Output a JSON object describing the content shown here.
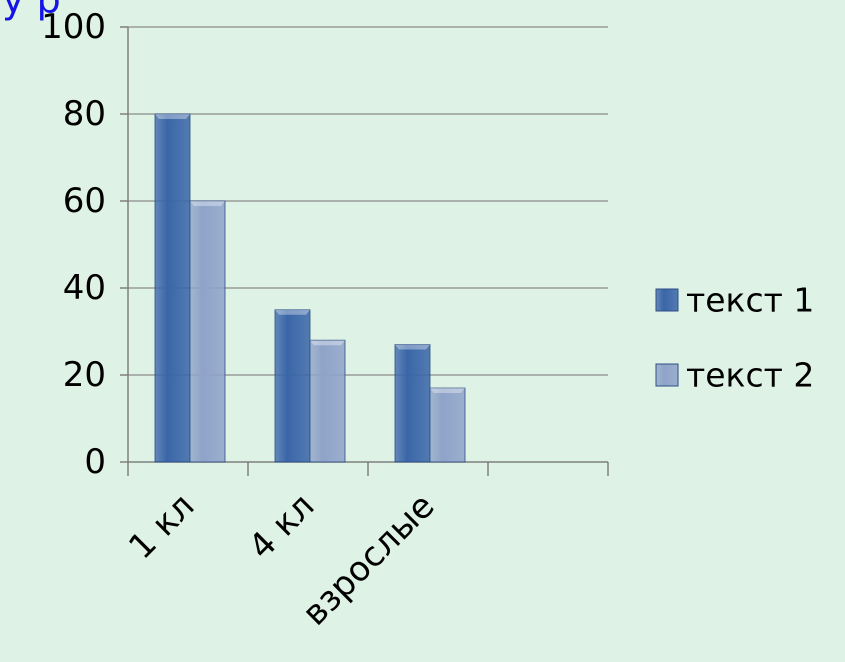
{
  "colors": {
    "background": "#dff2e6",
    "title": "#1414e6",
    "gridline": "#8c8c8c",
    "axis": "#7f7f7f",
    "series_1": "#3a66a8",
    "series_2": "#8fa3c9"
  },
  "chart_data": {
    "type": "bar",
    "categories": [
      "1 кл",
      "4 кл",
      "взрослые",
      ""
    ],
    "series": [
      {
        "name": "текст 1",
        "values": [
          80,
          35,
          27,
          null
        ]
      },
      {
        "name": "текст 2",
        "values": [
          60,
          28,
          17,
          null
        ]
      }
    ],
    "ylim": [
      0,
      100
    ],
    "yticks": [
      0,
      20,
      40,
      60,
      80,
      100
    ],
    "grid": true,
    "legend": "right",
    "title_fragment": "у р"
  }
}
